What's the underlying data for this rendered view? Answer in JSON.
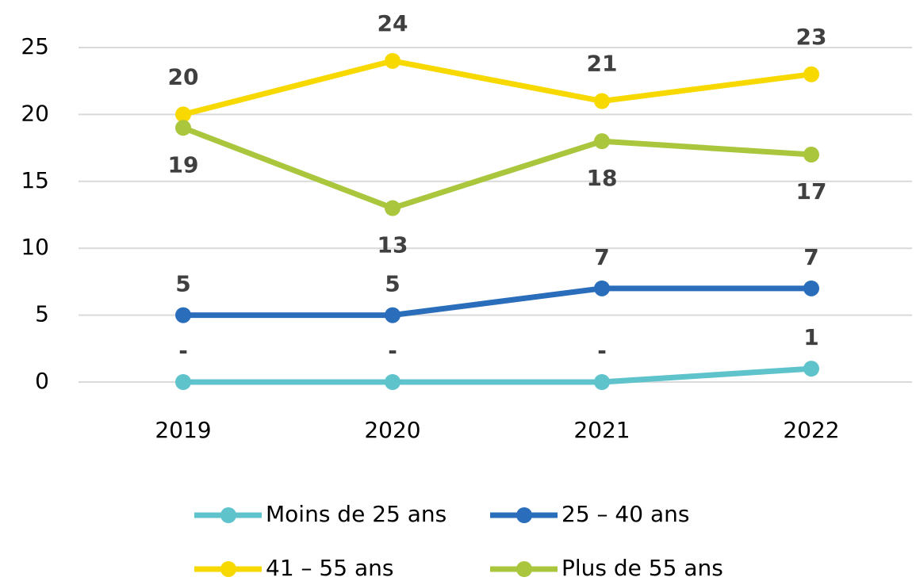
{
  "chart_data": {
    "type": "line",
    "categories": [
      "2019",
      "2020",
      "2021",
      "2022"
    ],
    "series": [
      {
        "name": "Moins de 25 ans",
        "color": "#5fc3cc",
        "values": [
          0,
          0,
          0,
          1
        ],
        "value_labels": [
          "-",
          "-",
          "-",
          "1"
        ]
      },
      {
        "name": "25 – 40 ans",
        "color": "#2a6ebb",
        "values": [
          5,
          5,
          7,
          7
        ]
      },
      {
        "name": "41 – 55 ans",
        "color": "#f7d900",
        "values": [
          20,
          24,
          21,
          23
        ]
      },
      {
        "name": "Plus de 55 ans",
        "color": "#a9c63c",
        "values": [
          19,
          13,
          18,
          17
        ]
      }
    ],
    "ylim": [
      0,
      25
    ],
    "yticks": [
      0,
      5,
      10,
      15,
      20,
      25
    ],
    "grid": true,
    "legend": "bottom"
  }
}
